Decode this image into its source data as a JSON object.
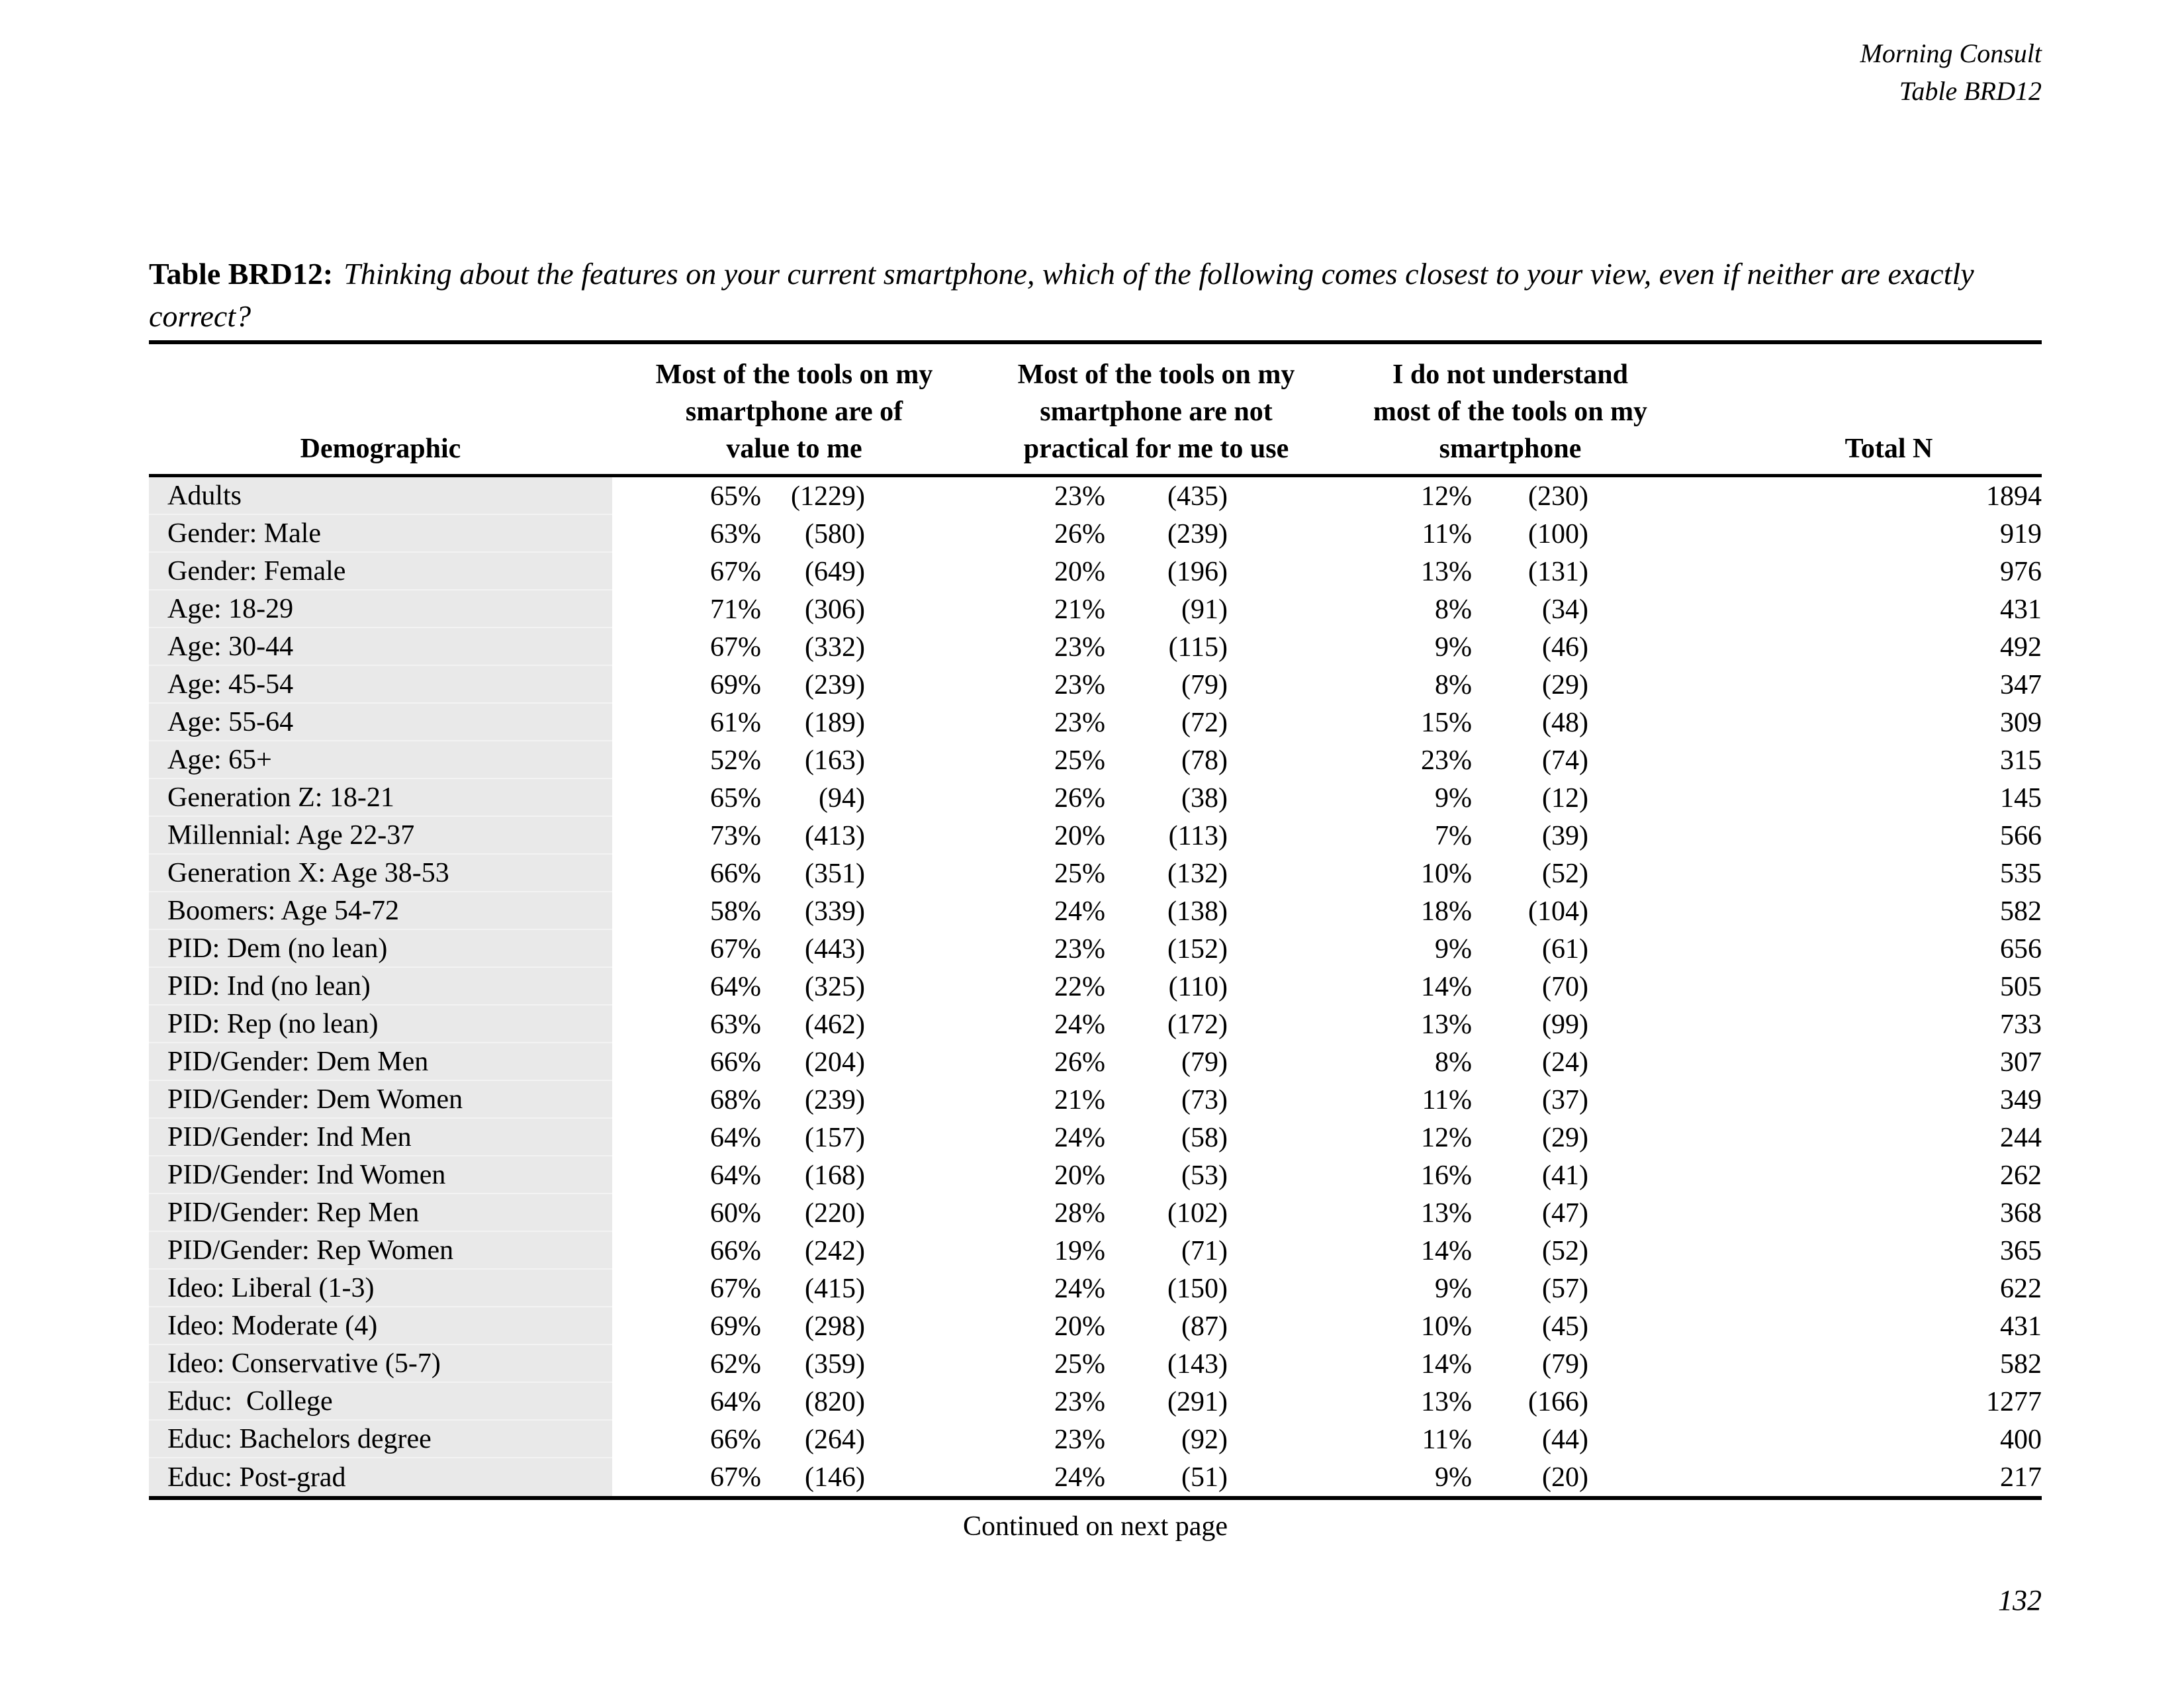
{
  "page": {
    "corner_line1": "Morning Consult",
    "corner_line2": "Table BRD12",
    "title_label": "Table BRD12:",
    "title_question": "Thinking about the features on your current smartphone, which of the following comes closest to your view, even if neither are exactly correct?",
    "continued": "Continued on next page",
    "page_number": "132"
  },
  "table": {
    "headers": {
      "demographic": "Demographic",
      "col1": "Most of the tools on my\nsmartphone are of\nvalue to me",
      "col2": "Most of the tools on my\nsmartphone are not\npractical for me to use",
      "col3": "I do not understand\nmost of the tools on my\nsmartphone",
      "total": "Total N"
    },
    "rows": [
      {
        "demo": "Adults",
        "p1": "65%",
        "n1": "(1229)",
        "p2": "23%",
        "n2": "(435)",
        "p3": "12%",
        "n3": "(230)",
        "total": "1894"
      },
      {
        "demo": "Gender: Male",
        "p1": "63%",
        "n1": "(580)",
        "p2": "26%",
        "n2": "(239)",
        "p3": "11%",
        "n3": "(100)",
        "total": "919"
      },
      {
        "demo": "Gender: Female",
        "p1": "67%",
        "n1": "(649)",
        "p2": "20%",
        "n2": "(196)",
        "p3": "13%",
        "n3": "(131)",
        "total": "976"
      },
      {
        "demo": "Age: 18-29",
        "p1": "71%",
        "n1": "(306)",
        "p2": "21%",
        "n2": "(91)",
        "p3": "8%",
        "n3": "(34)",
        "total": "431"
      },
      {
        "demo": "Age: 30-44",
        "p1": "67%",
        "n1": "(332)",
        "p2": "23%",
        "n2": "(115)",
        "p3": "9%",
        "n3": "(46)",
        "total": "492"
      },
      {
        "demo": "Age: 45-54",
        "p1": "69%",
        "n1": "(239)",
        "p2": "23%",
        "n2": "(79)",
        "p3": "8%",
        "n3": "(29)",
        "total": "347"
      },
      {
        "demo": "Age: 55-64",
        "p1": "61%",
        "n1": "(189)",
        "p2": "23%",
        "n2": "(72)",
        "p3": "15%",
        "n3": "(48)",
        "total": "309"
      },
      {
        "demo": "Age: 65+",
        "p1": "52%",
        "n1": "(163)",
        "p2": "25%",
        "n2": "(78)",
        "p3": "23%",
        "n3": "(74)",
        "total": "315"
      },
      {
        "demo": "Generation Z: 18-21",
        "p1": "65%",
        "n1": "(94)",
        "p2": "26%",
        "n2": "(38)",
        "p3": "9%",
        "n3": "(12)",
        "total": "145"
      },
      {
        "demo": "Millennial: Age 22-37",
        "p1": "73%",
        "n1": "(413)",
        "p2": "20%",
        "n2": "(113)",
        "p3": "7%",
        "n3": "(39)",
        "total": "566"
      },
      {
        "demo": "Generation X: Age 38-53",
        "p1": "66%",
        "n1": "(351)",
        "p2": "25%",
        "n2": "(132)",
        "p3": "10%",
        "n3": "(52)",
        "total": "535"
      },
      {
        "demo": "Boomers: Age 54-72",
        "p1": "58%",
        "n1": "(339)",
        "p2": "24%",
        "n2": "(138)",
        "p3": "18%",
        "n3": "(104)",
        "total": "582"
      },
      {
        "demo": "PID: Dem (no lean)",
        "p1": "67%",
        "n1": "(443)",
        "p2": "23%",
        "n2": "(152)",
        "p3": "9%",
        "n3": "(61)",
        "total": "656"
      },
      {
        "demo": "PID: Ind (no lean)",
        "p1": "64%",
        "n1": "(325)",
        "p2": "22%",
        "n2": "(110)",
        "p3": "14%",
        "n3": "(70)",
        "total": "505"
      },
      {
        "demo": "PID: Rep (no lean)",
        "p1": "63%",
        "n1": "(462)",
        "p2": "24%",
        "n2": "(172)",
        "p3": "13%",
        "n3": "(99)",
        "total": "733"
      },
      {
        "demo": "PID/Gender: Dem Men",
        "p1": "66%",
        "n1": "(204)",
        "p2": "26%",
        "n2": "(79)",
        "p3": "8%",
        "n3": "(24)",
        "total": "307"
      },
      {
        "demo": "PID/Gender: Dem Women",
        "p1": "68%",
        "n1": "(239)",
        "p2": "21%",
        "n2": "(73)",
        "p3": "11%",
        "n3": "(37)",
        "total": "349"
      },
      {
        "demo": "PID/Gender: Ind Men",
        "p1": "64%",
        "n1": "(157)",
        "p2": "24%",
        "n2": "(58)",
        "p3": "12%",
        "n3": "(29)",
        "total": "244"
      },
      {
        "demo": "PID/Gender: Ind Women",
        "p1": "64%",
        "n1": "(168)",
        "p2": "20%",
        "n2": "(53)",
        "p3": "16%",
        "n3": "(41)",
        "total": "262"
      },
      {
        "demo": "PID/Gender: Rep Men",
        "p1": "60%",
        "n1": "(220)",
        "p2": "28%",
        "n2": "(102)",
        "p3": "13%",
        "n3": "(47)",
        "total": "368"
      },
      {
        "demo": "PID/Gender: Rep Women",
        "p1": "66%",
        "n1": "(242)",
        "p2": "19%",
        "n2": "(71)",
        "p3": "14%",
        "n3": "(52)",
        "total": "365"
      },
      {
        "demo": "Ideo: Liberal (1-3)",
        "p1": "67%",
        "n1": "(415)",
        "p2": "24%",
        "n2": "(150)",
        "p3": "9%",
        "n3": "(57)",
        "total": "622"
      },
      {
        "demo": "Ideo: Moderate (4)",
        "p1": "69%",
        "n1": "(298)",
        "p2": "20%",
        "n2": "(87)",
        "p3": "10%",
        "n3": "(45)",
        "total": "431"
      },
      {
        "demo": "Ideo: Conservative (5-7)",
        "p1": "62%",
        "n1": "(359)",
        "p2": "25%",
        "n2": "(143)",
        "p3": "14%",
        "n3": "(79)",
        "total": "582"
      },
      {
        "demo": "Educ:  College",
        "p1": "64%",
        "n1": "(820)",
        "p2": "23%",
        "n2": "(291)",
        "p3": "13%",
        "n3": "(166)",
        "total": "1277"
      },
      {
        "demo": "Educ: Bachelors degree",
        "p1": "66%",
        "n1": "(264)",
        "p2": "23%",
        "n2": "(92)",
        "p3": "11%",
        "n3": "(44)",
        "total": "400"
      },
      {
        "demo": "Educ: Post-grad",
        "p1": "67%",
        "n1": "(146)",
        "p2": "24%",
        "n2": "(51)",
        "p3": "9%",
        "n3": "(20)",
        "total": "217"
      }
    ]
  }
}
